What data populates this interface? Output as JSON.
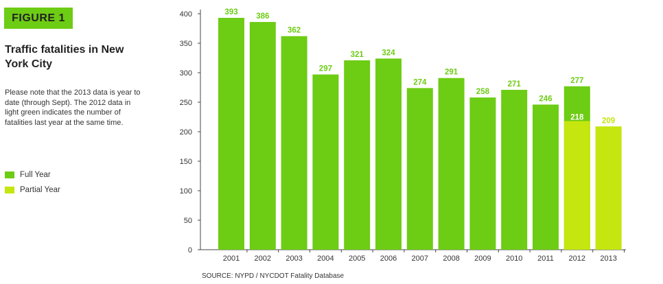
{
  "figure_label": "FIGURE 1",
  "title": "Traffic fatalities in New York City",
  "note": "Please note that the 2013 data is year to date (through Sept). The 2012 data in light green indicates the number of fatalities last year at the same time.",
  "legend": [
    {
      "label": "Full Year",
      "color": "#6dcc14"
    },
    {
      "label": "Partial Year",
      "color": "#c5e60e"
    }
  ],
  "source": "SOURCE: NYPD / NYCDOT Fatality Database",
  "colors": {
    "full": "#6dcc14",
    "partial": "#c5e60e",
    "label_full": "#6dcc14",
    "label_partial": "#c5e60e"
  },
  "chart_data": {
    "type": "bar",
    "categories": [
      "2001",
      "2002",
      "2003",
      "2004",
      "2005",
      "2006",
      "2007",
      "2008",
      "2009",
      "2010",
      "2011",
      "2012",
      "2013"
    ],
    "series": [
      {
        "name": "Full Year",
        "values": [
          393,
          386,
          362,
          297,
          321,
          324,
          274,
          291,
          258,
          271,
          246,
          277,
          null
        ]
      },
      {
        "name": "Partial Year",
        "values": [
          null,
          null,
          null,
          null,
          null,
          null,
          null,
          null,
          null,
          null,
          null,
          218,
          209
        ]
      }
    ],
    "yticks": [
      0,
      50,
      100,
      150,
      200,
      250,
      300,
      350,
      400
    ],
    "ylim": [
      0,
      400
    ],
    "title": "Traffic fatalities in New York City",
    "xlabel": "",
    "ylabel": "",
    "grid": false
  }
}
